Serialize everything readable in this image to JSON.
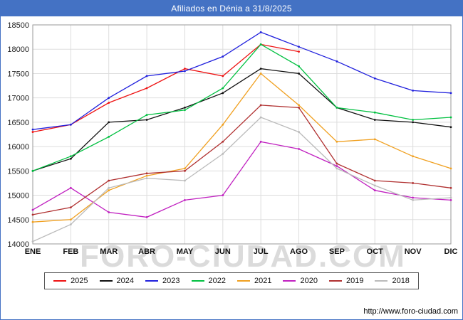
{
  "header": {
    "title": "Afiliados en Dénia a 31/8/2025",
    "bg_color": "#4472c4"
  },
  "watermark": "FORO-CIUDAD.COM",
  "footer": {
    "url": "http://www.foro-ciudad.com"
  },
  "chart_data": {
    "type": "line",
    "title": "Afiliados en Dénia a 31/8/2025",
    "categories": [
      "ENE",
      "FEB",
      "MAR",
      "ABR",
      "MAY",
      "JUN",
      "JUL",
      "AGO",
      "SEP",
      "OCT",
      "NOV",
      "DIC"
    ],
    "ylim": [
      14000,
      18500
    ],
    "ytick_step": 500,
    "grid": true,
    "legend_position": "bottom",
    "series": [
      {
        "name": "2025",
        "color": "#ee1111",
        "values": [
          16300,
          16450,
          16900,
          17200,
          17600,
          17450,
          18100,
          17950,
          null,
          null,
          null,
          null
        ]
      },
      {
        "name": "2024",
        "color": "#111111",
        "values": [
          15500,
          15750,
          16500,
          16550,
          16800,
          17100,
          17600,
          17500,
          16800,
          16550,
          16500,
          16400
        ]
      },
      {
        "name": "2023",
        "color": "#2020dd",
        "values": [
          16350,
          16450,
          17000,
          17450,
          17550,
          17850,
          18350,
          18050,
          17750,
          17400,
          17150,
          17100
        ]
      },
      {
        "name": "2022",
        "color": "#00c040",
        "values": [
          15500,
          15800,
          16200,
          16650,
          16750,
          17200,
          18100,
          17650,
          16800,
          16700,
          16550,
          16600
        ]
      },
      {
        "name": "2021",
        "color": "#f0a020",
        "values": [
          14450,
          14500,
          15100,
          15400,
          15550,
          16450,
          17500,
          16850,
          16100,
          16150,
          15800,
          15550
        ]
      },
      {
        "name": "2020",
        "color": "#c020c0",
        "values": [
          14700,
          15150,
          14650,
          14550,
          14900,
          15000,
          16100,
          15950,
          15600,
          15100,
          14950,
          14900
        ]
      },
      {
        "name": "2019",
        "color": "#b03030",
        "values": [
          14600,
          14750,
          15300,
          15450,
          15500,
          16100,
          16850,
          16800,
          15650,
          15300,
          15250,
          15150
        ]
      },
      {
        "name": "2018",
        "color": "#bbbbbb",
        "values": [
          14050,
          14400,
          15150,
          15350,
          15300,
          15850,
          16600,
          16300,
          15550,
          15200,
          14900,
          14950
        ]
      }
    ]
  }
}
